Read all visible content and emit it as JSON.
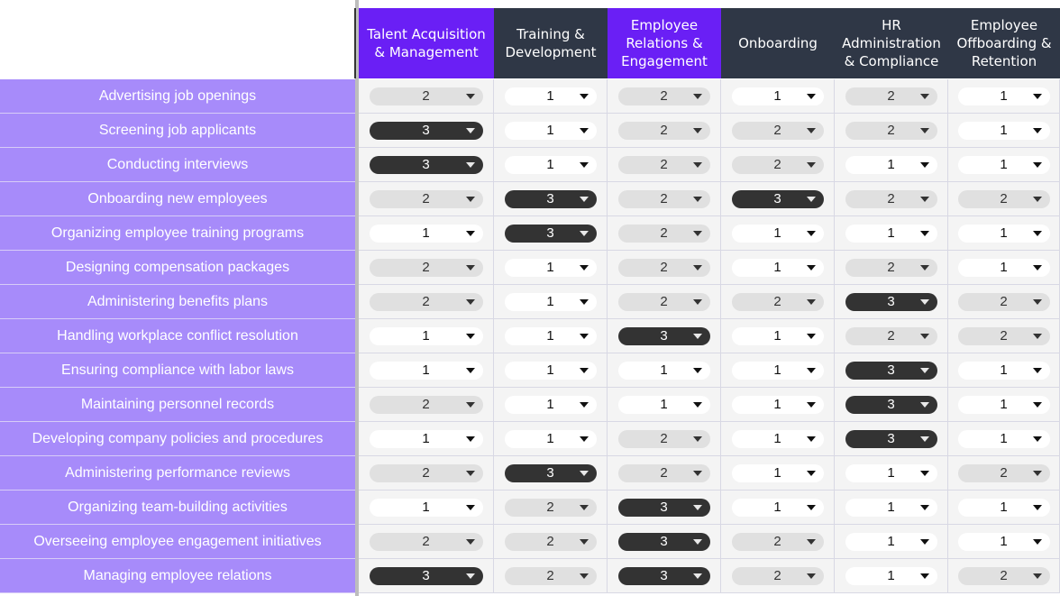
{
  "columns": [
    {
      "label": "Talent Acquisition\n& Management",
      "color": "purple"
    },
    {
      "label": "Training &\nDevelopment",
      "color": "dark"
    },
    {
      "label": "Employee\nRelations &\nEngagement",
      "color": "purple"
    },
    {
      "label": "Onboarding",
      "color": "dark"
    },
    {
      "label": "HR\nAdministration\n& Compliance",
      "color": "dark"
    },
    {
      "label": "Employee\nOffboarding &\nRetention",
      "color": "dark"
    }
  ],
  "rows": [
    {
      "label": "Advertising job openings",
      "values": [
        "2",
        "1",
        "2",
        "1",
        "2",
        "1"
      ]
    },
    {
      "label": "Screening job applicants",
      "values": [
        "3",
        "1",
        "2",
        "2",
        "2",
        "1"
      ]
    },
    {
      "label": "Conducting interviews",
      "values": [
        "3",
        "1",
        "2",
        "2",
        "1",
        "1"
      ]
    },
    {
      "label": "Onboarding new employees",
      "values": [
        "2",
        "3",
        "2",
        "3",
        "2",
        "2"
      ]
    },
    {
      "label": "Organizing employee training programs",
      "values": [
        "1",
        "3",
        "2",
        "1",
        "1",
        "1"
      ]
    },
    {
      "label": "Designing compensation packages",
      "values": [
        "2",
        "1",
        "2",
        "1",
        "2",
        "1"
      ]
    },
    {
      "label": "Administering benefits plans",
      "values": [
        "2",
        "1",
        "2",
        "2",
        "3",
        "2"
      ]
    },
    {
      "label": "Handling workplace conflict resolution",
      "values": [
        "1",
        "1",
        "3",
        "1",
        "2",
        "2"
      ]
    },
    {
      "label": "Ensuring compliance with labor laws",
      "values": [
        "1",
        "1",
        "1",
        "1",
        "3",
        "1"
      ]
    },
    {
      "label": "Maintaining personnel records",
      "values": [
        "2",
        "1",
        "1",
        "1",
        "3",
        "1"
      ]
    },
    {
      "label": "Developing company policies and procedures",
      "values": [
        "1",
        "1",
        "2",
        "1",
        "3",
        "1"
      ]
    },
    {
      "label": "Administering performance reviews",
      "values": [
        "2",
        "3",
        "2",
        "1",
        "1",
        "2"
      ]
    },
    {
      "label": "Organizing team-building activities",
      "values": [
        "1",
        "2",
        "3",
        "1",
        "1",
        "1"
      ]
    },
    {
      "label": "Overseeing employee engagement initiatives",
      "values": [
        "2",
        "2",
        "3",
        "2",
        "1",
        "1"
      ]
    },
    {
      "label": "Managing employee relations",
      "values": [
        "3",
        "2",
        "3",
        "2",
        "1",
        "2"
      ]
    }
  ],
  "colors": {
    "header_purple": "#6a1ff5",
    "header_dark": "#2f3746",
    "row_label_bg": "#a78bfa",
    "pill_1": "#ffffff",
    "pill_2": "#e0e0e0",
    "pill_3": "#333333"
  },
  "icons": {
    "dropdown": "caret-down-icon"
  }
}
